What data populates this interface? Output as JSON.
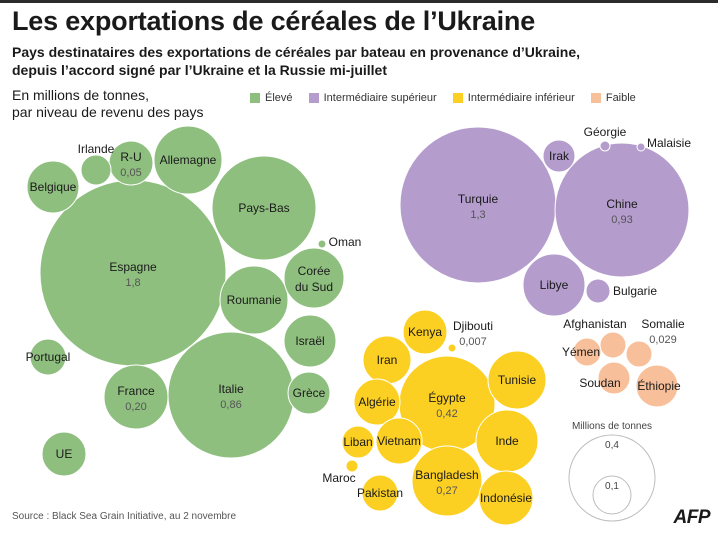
{
  "title": "Les exportations de céréales de l’Ukraine",
  "subtitle_lines": [
    "Pays destinataires des exportations de céréales par bateau en provenance d’Ukraine,",
    "depuis l’accord signé par l’Ukraine et la Russie mi-juillet"
  ],
  "unit_lines": [
    "En millions de tonnes,",
    "par niveau de revenu des pays"
  ],
  "source": "Source : Black Sea Grain Initiative, au 2 novembre",
  "logo": "AFP",
  "chart_data": {
    "type": "bubble",
    "unit": "Millions de tonnes",
    "groups": [
      {
        "name": "Élevé",
        "color": "#8fbf7f"
      },
      {
        "name": "Intermédiaire supérieur",
        "color": "#b49ccd"
      },
      {
        "name": "Intermédiaire inférieur",
        "color": "#fcd023"
      },
      {
        "name": "Faible",
        "color": "#f8c09a"
      }
    ],
    "size_legend": {
      "title": "Millions de tonnes",
      "values": [
        "0,4",
        "0,1"
      ]
    },
    "countries": [
      {
        "name": "Espagne",
        "group": "Élevé",
        "value_label": "1,8"
      },
      {
        "name": "Italie",
        "group": "Élevé",
        "value_label": "0,86"
      },
      {
        "name": "France",
        "group": "Élevé",
        "value_label": "0,20"
      },
      {
        "name": "R-U",
        "group": "Élevé",
        "value_label": "0,05"
      },
      {
        "name": "Pays-Bas",
        "group": "Élevé"
      },
      {
        "name": "Allemagne",
        "group": "Élevé"
      },
      {
        "name": "Belgique",
        "group": "Élevé"
      },
      {
        "name": "Irlande",
        "group": "Élevé"
      },
      {
        "name": "Roumanie",
        "group": "Élevé"
      },
      {
        "name": "Corée du Sud",
        "group": "Élevé"
      },
      {
        "name": "Oman",
        "group": "Élevé"
      },
      {
        "name": "Israël",
        "group": "Élevé"
      },
      {
        "name": "Grèce",
        "group": "Élevé"
      },
      {
        "name": "Portugal",
        "group": "Élevé"
      },
      {
        "name": "UE",
        "group": "Élevé"
      },
      {
        "name": "Turquie",
        "group": "Intermédiaire supérieur",
        "value_label": "1,3"
      },
      {
        "name": "Chine",
        "group": "Intermédiaire supérieur",
        "value_label": "0,93"
      },
      {
        "name": "Irak",
        "group": "Intermédiaire supérieur"
      },
      {
        "name": "Géorgie",
        "group": "Intermédiaire supérieur"
      },
      {
        "name": "Malaisie",
        "group": "Intermédiaire supérieur"
      },
      {
        "name": "Libye",
        "group": "Intermédiaire supérieur"
      },
      {
        "name": "Bulgarie",
        "group": "Intermédiaire supérieur"
      },
      {
        "name": "Égypte",
        "group": "Intermédiaire inférieur",
        "value_label": "0,42"
      },
      {
        "name": "Bangladesh",
        "group": "Intermédiaire inférieur",
        "value_label": "0,27"
      },
      {
        "name": "Djibouti",
        "group": "Intermédiaire inférieur",
        "value_label": "0,007"
      },
      {
        "name": "Kenya",
        "group": "Intermédiaire inférieur"
      },
      {
        "name": "Iran",
        "group": "Intermédiaire inférieur"
      },
      {
        "name": "Tunisie",
        "group": "Intermédiaire inférieur"
      },
      {
        "name": "Algérie",
        "group": "Intermédiaire inférieur"
      },
      {
        "name": "Inde",
        "group": "Intermédiaire inférieur"
      },
      {
        "name": "Liban",
        "group": "Intermédiaire inférieur"
      },
      {
        "name": "Vietnam",
        "group": "Intermédiaire inférieur"
      },
      {
        "name": "Maroc",
        "group": "Intermédiaire inférieur"
      },
      {
        "name": "Pakistan",
        "group": "Intermédiaire inférieur"
      },
      {
        "name": "Indonésie",
        "group": "Intermédiaire inférieur"
      },
      {
        "name": "Somalie",
        "group": "Faible",
        "value_label": "0,029"
      },
      {
        "name": "Afghanistan",
        "group": "Faible"
      },
      {
        "name": "Yémen",
        "group": "Faible"
      },
      {
        "name": "Soudan",
        "group": "Faible"
      },
      {
        "name": "Éthiopie",
        "group": "Faible"
      }
    ]
  }
}
